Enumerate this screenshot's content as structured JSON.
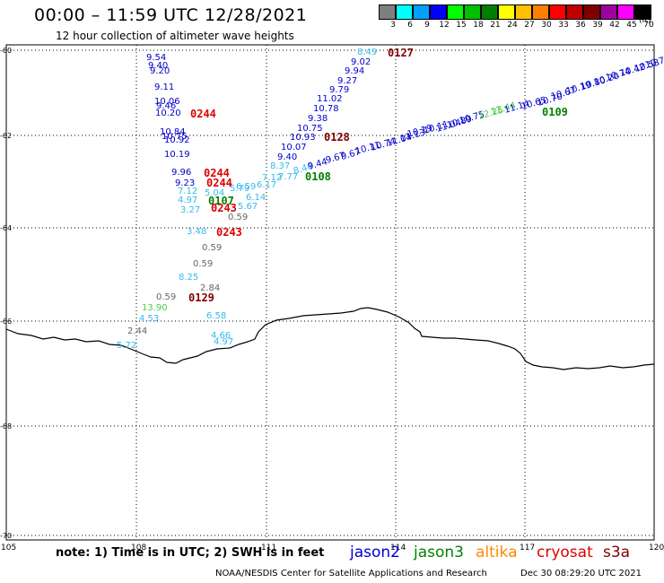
{
  "header": {
    "title": "00:00 – 11:59 UTC 12/28/2021",
    "subtitle": "12 hour collection of altimeter wave heights",
    "unit": "(ft)"
  },
  "color_scale": [
    {
      "label": "3",
      "color": "#7f7f7f"
    },
    {
      "label": "6",
      "color": "#00ffff"
    },
    {
      "label": "9",
      "color": "#00a0ff"
    },
    {
      "label": "12",
      "color": "#0000ff"
    },
    {
      "label": "15",
      "color": "#00ff00"
    },
    {
      "label": "18",
      "color": "#00c000"
    },
    {
      "label": "21",
      "color": "#008000"
    },
    {
      "label": "24",
      "color": "#ffff00"
    },
    {
      "label": "27",
      "color": "#ffc000"
    },
    {
      "label": "30",
      "color": "#ff8000"
    },
    {
      "label": "33",
      "color": "#ff0000"
    },
    {
      "label": "36",
      "color": "#c00000"
    },
    {
      "label": "39",
      "color": "#800000"
    },
    {
      "label": "42",
      "color": "#a000a0"
    },
    {
      "label": "45",
      "color": "#ff00ff"
    },
    {
      "label": "70",
      "color": "#000000"
    }
  ],
  "axes": {
    "lon_labels": [
      "105",
      "108",
      "111",
      "114",
      "117",
      "120"
    ],
    "lat_labels": [
      "-60",
      "-62",
      "-64",
      "-66",
      "-68",
      "-70"
    ]
  },
  "tracks": [
    {
      "id": "A",
      "labels": [
        {
          "t": "9.54",
          "c": "#0000cc"
        },
        {
          "t": "9.40",
          "c": "#0000cc"
        },
        {
          "t": "9.20",
          "c": "#0000cc"
        },
        {
          "t": "9.11",
          "c": "#0000cc"
        },
        {
          "t": "10.06",
          "c": "#0000cc"
        },
        {
          "t": "9.46",
          "c": "#0000cc"
        },
        {
          "t": "10.20",
          "c": "#0000cc"
        },
        {
          "t": "10.84",
          "c": "#0000cc"
        },
        {
          "t": "10.75",
          "c": "#0000cc"
        },
        {
          "t": "10.92",
          "c": "#0000cc"
        },
        {
          "t": "10.19",
          "c": "#0000cc"
        },
        {
          "t": "9.96",
          "c": "#0000cc"
        },
        {
          "t": "9.23",
          "c": "#0000cc"
        },
        {
          "t": "7.12",
          "c": "#33bbee"
        },
        {
          "t": "5.04",
          "c": "#33bbee"
        },
        {
          "t": "4.97",
          "c": "#33bbee"
        },
        {
          "t": "3.27",
          "c": "#33bbee"
        },
        {
          "t": "0.59",
          "c": "#666666"
        },
        {
          "t": "3.48",
          "c": "#33bbee"
        },
        {
          "t": "0.59",
          "c": "#666666"
        },
        {
          "t": "8.25",
          "c": "#33bbee"
        },
        {
          "t": "0.59",
          "c": "#666666"
        },
        {
          "t": "2.84",
          "c": "#666666"
        },
        {
          "t": "0.59",
          "c": "#666666"
        },
        {
          "t": "13.90",
          "c": "#44cc44"
        },
        {
          "t": "4.53",
          "c": "#33bbee"
        },
        {
          "t": "6.58",
          "c": "#33bbee"
        },
        {
          "t": "2.44",
          "c": "#666666"
        },
        {
          "t": "5.72",
          "c": "#33bbee"
        },
        {
          "t": "4.66",
          "c": "#33bbee"
        },
        {
          "t": "4.97",
          "c": "#33bbee"
        }
      ]
    },
    {
      "id": "B",
      "labels": [
        {
          "t": "8.49",
          "c": "#33bbee"
        },
        {
          "t": "9.02",
          "c": "#0000cc"
        },
        {
          "t": "9.94",
          "c": "#0000cc"
        },
        {
          "t": "9.27",
          "c": "#0000cc"
        },
        {
          "t": "9.79",
          "c": "#0000cc"
        },
        {
          "t": "11.02",
          "c": "#0000cc"
        },
        {
          "t": "10.78",
          "c": "#0000cc"
        },
        {
          "t": "9.38",
          "c": "#0000cc"
        },
        {
          "t": "10.75",
          "c": "#0000cc"
        },
        {
          "t": "10.93",
          "c": "#0000cc"
        },
        {
          "t": "10.07",
          "c": "#0000cc"
        },
        {
          "t": "9.40",
          "c": "#0000cc"
        },
        {
          "t": "8.37",
          "c": "#33bbee"
        },
        {
          "t": "7.77",
          "c": "#33bbee"
        },
        {
          "t": "7.12",
          "c": "#33bbee"
        },
        {
          "t": "6.17",
          "c": "#33bbee"
        },
        {
          "t": "6.59",
          "c": "#33bbee"
        },
        {
          "t": "5.79",
          "c": "#33bbee"
        },
        {
          "t": "6.14",
          "c": "#33bbee"
        },
        {
          "t": "5.67",
          "c": "#33bbee"
        }
      ]
    },
    {
      "id": "C",
      "labels": [
        {
          "t": "8.44",
          "c": "#33bbee"
        },
        {
          "t": "9.44",
          "c": "#0000cc"
        },
        {
          "t": "9.67",
          "c": "#0000cc"
        },
        {
          "t": "9.67",
          "c": "#0000cc"
        },
        {
          "t": "10.11",
          "c": "#0000cc"
        },
        {
          "t": "10.74",
          "c": "#0000cc"
        },
        {
          "t": "11.04",
          "c": "#0000cc"
        },
        {
          "t": "11.13",
          "c": "#0000cc"
        },
        {
          "t": "10.19",
          "c": "#0000cc"
        },
        {
          "t": "10.11",
          "c": "#0000cc"
        },
        {
          "t": "11.04",
          "c": "#0000cc"
        },
        {
          "t": "10.89",
          "c": "#0000cc"
        },
        {
          "t": "10.75",
          "c": "#0000cc"
        },
        {
          "t": "12.25",
          "c": "#44cc44"
        },
        {
          "t": "12.44",
          "c": "#44cc44"
        },
        {
          "t": "11.14",
          "c": "#0000cc"
        },
        {
          "t": "10.65",
          "c": "#0000cc"
        },
        {
          "t": "10.70",
          "c": "#0000cc"
        },
        {
          "t": "10.67",
          "c": "#0000cc"
        },
        {
          "t": "10.19",
          "c": "#0000cc"
        },
        {
          "t": "10.80",
          "c": "#0000cc"
        },
        {
          "t": "10.20",
          "c": "#0000cc"
        },
        {
          "t": "10.74",
          "c": "#0000cc"
        },
        {
          "t": "10.42",
          "c": "#0000cc"
        },
        {
          "t": "10.53",
          "c": "#0000cc"
        },
        {
          "t": "10.7",
          "c": "#0000cc"
        }
      ]
    }
  ],
  "time_labels": [
    {
      "t": "0127",
      "c": "#800000"
    },
    {
      "t": "0244",
      "c": "#dd0000"
    },
    {
      "t": "0128",
      "c": "#800000"
    },
    {
      "t": "0244",
      "c": "#dd0000"
    },
    {
      "t": "0244",
      "c": "#dd0000"
    },
    {
      "t": "0107",
      "c": "#008000"
    },
    {
      "t": "0243",
      "c": "#dd0000"
    },
    {
      "t": "0243",
      "c": "#dd0000"
    },
    {
      "t": "0108",
      "c": "#008000"
    },
    {
      "t": "0109",
      "c": "#008000"
    },
    {
      "t": "0129",
      "c": "#800000"
    }
  ],
  "footer": {
    "note": "note: 1) Time is in UTC; 2) SWH is in feet",
    "satellites": [
      {
        "name": "jason2",
        "color": "#0000cc"
      },
      {
        "name": "jason3",
        "color": "#008000"
      },
      {
        "name": "altika",
        "color": "#ff8800"
      },
      {
        "name": "cryosat",
        "color": "#dd0000"
      },
      {
        "name": "s3a",
        "color": "#800000"
      }
    ],
    "credit": "NOAA/NESDIS Center for Satellite Applications and Research",
    "timestamp": "Dec 30 08:29:20 UTC 2021"
  }
}
